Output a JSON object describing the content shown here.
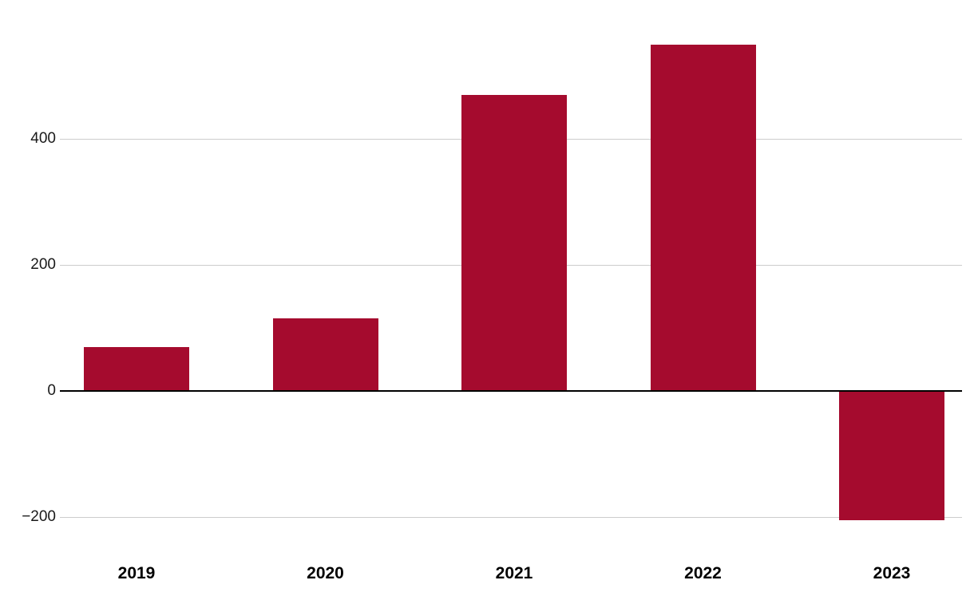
{
  "chart_data": {
    "type": "bar",
    "title": "",
    "xlabel": "",
    "ylabel": "",
    "categories": [
      "2019",
      "2020",
      "2021",
      "2022",
      "2023"
    ],
    "values": [
      70,
      115,
      470,
      550,
      -205
    ],
    "ylim": [
      -260,
      610
    ],
    "yticks": [
      {
        "value": 400,
        "label": "400"
      },
      {
        "value": 200,
        "label": "200"
      },
      {
        "value": 0,
        "label": "0"
      },
      {
        "value": -200,
        "label": "−200"
      }
    ],
    "grid": "horizontal",
    "legend": "none",
    "colors": {
      "bar": "#A50B2E",
      "gridline": "#cccccc",
      "zero_line": "#000000",
      "tick_text": "#1a1a1a",
      "category_text": "#000000",
      "background": "#ffffff"
    }
  }
}
